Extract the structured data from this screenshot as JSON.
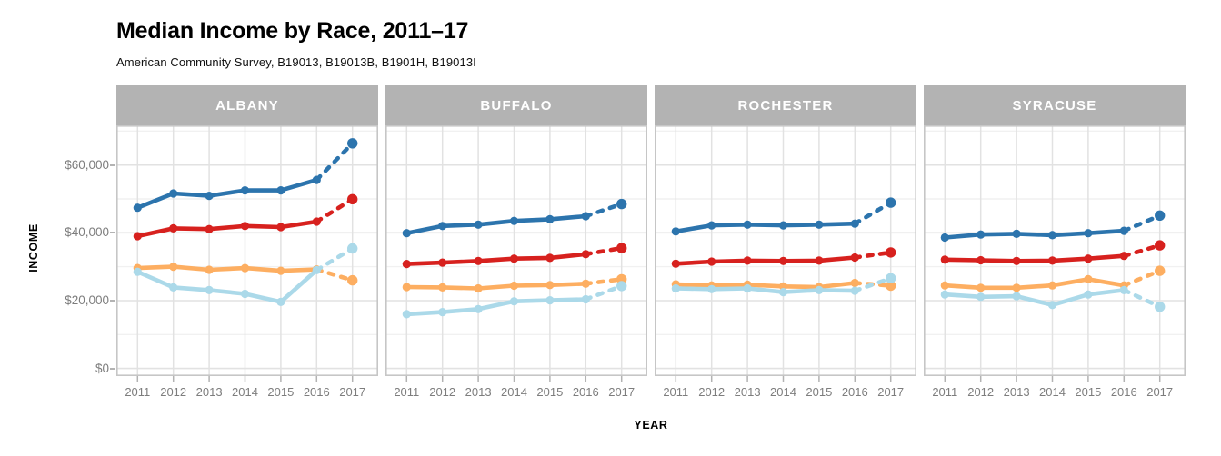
{
  "chart_data": {
    "type": "line",
    "title": "Median Income by Race, 2011–17",
    "subtitle": "American Community Survey, B19013, B19013B, B1901H, B19013I",
    "xlabel": "YEAR",
    "ylabel": "INCOME",
    "x": [
      2011,
      2012,
      2013,
      2014,
      2015,
      2016,
      2017
    ],
    "x_tick_labels": [
      "2011",
      "2012",
      "2013",
      "2014",
      "2015",
      "2016",
      "2017"
    ],
    "y_ticks": [
      {
        "label": "$60,000",
        "value": 60000
      },
      {
        "label": "$40,000",
        "value": 40000
      },
      {
        "label": "$20,000",
        "value": 20000
      },
      {
        "label": "$0",
        "value": 0
      }
    ],
    "ylim": [
      0,
      71700
    ],
    "grid": true,
    "legend": "none",
    "final_segment_dashed": true,
    "series_colors": {
      "orange": "#fdae61",
      "light_blue": "#abd9e9",
      "red": "#d7211e",
      "blue": "#2c74ad"
    },
    "panel_header_color": "#b3b3b3",
    "panels": [
      {
        "name": "ALBANY",
        "series": [
          {
            "key": "orange",
            "values": [
              29600,
              30000,
              29100,
              29600,
              28800,
              29200,
              26000
            ]
          },
          {
            "key": "light_blue",
            "values": [
              28500,
              23900,
              23100,
              22000,
              19600,
              29000,
              35400
            ]
          },
          {
            "key": "red",
            "values": [
              39000,
              41300,
              41100,
              42000,
              41700,
              43300,
              49900
            ]
          },
          {
            "key": "blue",
            "values": [
              47400,
              51600,
              50900,
              52500,
              52500,
              55600,
              66400
            ]
          }
        ]
      },
      {
        "name": "BUFFALO",
        "series": [
          {
            "key": "orange",
            "values": [
              24000,
              23900,
              23600,
              24400,
              24600,
              25000,
              26300
            ]
          },
          {
            "key": "light_blue",
            "values": [
              16000,
              16600,
              17500,
              19800,
              20100,
              20400,
              24300
            ]
          },
          {
            "key": "red",
            "values": [
              30800,
              31200,
              31700,
              32400,
              32600,
              33700,
              35500
            ]
          },
          {
            "key": "blue",
            "values": [
              39900,
              42000,
              42400,
              43500,
              44000,
              44900,
              48500
            ]
          }
        ]
      },
      {
        "name": "ROCHESTER",
        "series": [
          {
            "key": "orange",
            "values": [
              24800,
              24500,
              24700,
              24200,
              24000,
              25200,
              24400
            ]
          },
          {
            "key": "light_blue",
            "values": [
              23600,
              23400,
              23600,
              22500,
              23100,
              22900,
              26600
            ]
          },
          {
            "key": "red",
            "values": [
              30900,
              31500,
              31800,
              31700,
              31800,
              32700,
              34200
            ]
          },
          {
            "key": "blue",
            "values": [
              40400,
              42200,
              42400,
              42200,
              42400,
              42700,
              48900
            ]
          }
        ]
      },
      {
        "name": "SYRACUSE",
        "series": [
          {
            "key": "orange",
            "values": [
              24500,
              23800,
              23800,
              24500,
              26300,
              24500,
              28800
            ]
          },
          {
            "key": "light_blue",
            "values": [
              21800,
              21100,
              21300,
              18700,
              21800,
              23100,
              18200
            ]
          },
          {
            "key": "red",
            "values": [
              32100,
              31900,
              31700,
              31800,
              32400,
              33200,
              36300
            ]
          },
          {
            "key": "blue",
            "values": [
              38600,
              39500,
              39700,
              39300,
              39900,
              40600,
              45100
            ]
          }
        ]
      }
    ],
    "grid_colors": {
      "major": "#e2e2e2",
      "minor": "#f1f1f1",
      "border": "#c6c6c6",
      "tick": "#b3b3b3"
    }
  }
}
